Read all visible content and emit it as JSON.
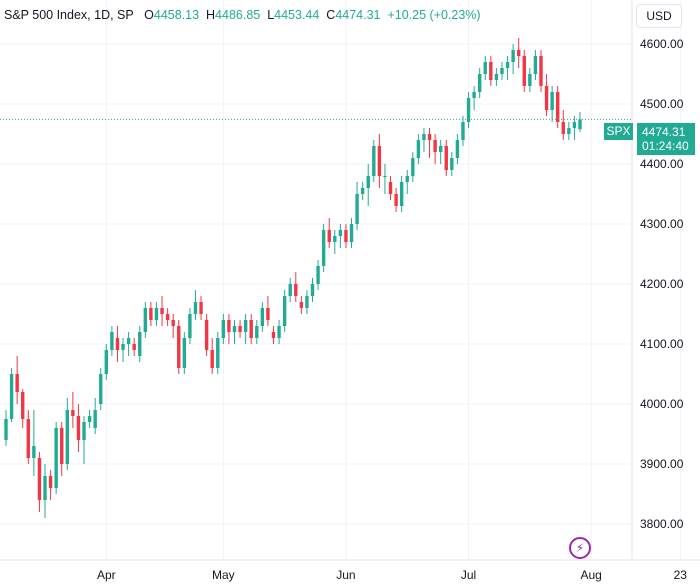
{
  "legend": {
    "symbol_info": "S&P 500 Index, 1D, SP",
    "open_label": "O",
    "open_value": "4458.13",
    "high_label": "H",
    "high_value": "4486.85",
    "low_label": "L",
    "low_value": "4453.44",
    "close_label": "C",
    "close_value": "4474.31",
    "change": "+10.25 (+0.23%)"
  },
  "currency": "USD",
  "price_tag": {
    "symbol": "SPX",
    "price": "4474.31",
    "countdown": "01:24:40"
  },
  "colors": {
    "up": "#22ab94",
    "down": "#f23645",
    "last_price_line": "#22ab94",
    "bolt": "#9c27b0"
  },
  "icons": {
    "bolt_button": "lightning-bolt-icon"
  },
  "chart_data": {
    "type": "candlestick",
    "ylim": [
      3740,
      4640
    ],
    "y_ticks": [
      3800,
      3900,
      4000,
      4100,
      4200,
      4300,
      4400,
      4500,
      4600
    ],
    "y_tick_labels": [
      "3800.00",
      "3900.00",
      "4000.00",
      "4100.00",
      "4200.00",
      "4300.00",
      "4400.00",
      "4500.00",
      "4600.00"
    ],
    "x_tick_labels": [
      "Apr",
      "May",
      "Jun",
      "Jul",
      "Aug",
      "23"
    ],
    "x_tick_index": [
      18,
      39,
      61,
      83,
      105,
      121
    ],
    "last_price": 4474.31,
    "grid": true,
    "ohlc": [
      [
        3940,
        3990,
        3930,
        3975
      ],
      [
        3975,
        4060,
        3970,
        4050
      ],
      [
        4050,
        4080,
        4000,
        4020
      ],
      [
        4020,
        4025,
        3960,
        3975
      ],
      [
        3975,
        3990,
        3900,
        3910
      ],
      [
        3910,
        3990,
        3880,
        3930
      ],
      [
        3910,
        3920,
        3820,
        3840
      ],
      [
        3840,
        3900,
        3810,
        3880
      ],
      [
        3880,
        3890,
        3840,
        3860
      ],
      [
        3860,
        3970,
        3850,
        3960
      ],
      [
        3960,
        3970,
        3880,
        3900
      ],
      [
        3900,
        4010,
        3890,
        3990
      ],
      [
        3990,
        4020,
        3960,
        3980
      ],
      [
        3980,
        4000,
        3920,
        3940
      ],
      [
        3940,
        3980,
        3900,
        3970
      ],
      [
        3970,
        3990,
        3960,
        3980
      ],
      [
        3960,
        4010,
        3950,
        3990
      ],
      [
        4000,
        4060,
        3990,
        4050
      ],
      [
        4050,
        4100,
        4040,
        4090
      ],
      [
        4090,
        4130,
        4080,
        4120
      ],
      [
        4110,
        4130,
        4070,
        4090
      ],
      [
        4090,
        4110,
        4070,
        4100
      ],
      [
        4100,
        4120,
        4080,
        4110
      ],
      [
        4100,
        4110,
        4080,
        4090
      ],
      [
        4080,
        4130,
        4070,
        4120
      ],
      [
        4120,
        4170,
        4110,
        4160
      ],
      [
        4160,
        4170,
        4130,
        4140
      ],
      [
        4140,
        4170,
        4130,
        4160
      ],
      [
        4160,
        4180,
        4130,
        4150
      ],
      [
        4150,
        4160,
        4130,
        4140
      ],
      [
        4140,
        4150,
        4110,
        4130
      ],
      [
        4130,
        4140,
        4050,
        4060
      ],
      [
        4060,
        4120,
        4050,
        4110
      ],
      [
        4110,
        4160,
        4100,
        4150
      ],
      [
        4150,
        4190,
        4140,
        4170
      ],
      [
        4170,
        4180,
        4140,
        4150
      ],
      [
        4140,
        4150,
        4080,
        4090
      ],
      [
        4090,
        4110,
        4050,
        4060
      ],
      [
        4060,
        4120,
        4050,
        4110
      ],
      [
        4110,
        4150,
        4100,
        4140
      ],
      [
        4140,
        4150,
        4100,
        4120
      ],
      [
        4120,
        4140,
        4100,
        4130
      ],
      [
        4130,
        4140,
        4110,
        4120
      ],
      [
        4120,
        4150,
        4100,
        4140
      ],
      [
        4140,
        4150,
        4100,
        4110
      ],
      [
        4110,
        4140,
        4100,
        4130
      ],
      [
        4130,
        4170,
        4120,
        4160
      ],
      [
        4160,
        4180,
        4130,
        4140
      ],
      [
        4120,
        4130,
        4100,
        4110
      ],
      [
        4110,
        4140,
        4100,
        4130
      ],
      [
        4130,
        4190,
        4120,
        4180
      ],
      [
        4180,
        4210,
        4170,
        4200
      ],
      [
        4200,
        4220,
        4170,
        4180
      ],
      [
        4170,
        4180,
        4150,
        4160
      ],
      [
        4160,
        4190,
        4150,
        4180
      ],
      [
        4180,
        4210,
        4170,
        4200
      ],
      [
        4200,
        4240,
        4190,
        4230
      ],
      [
        4230,
        4300,
        4220,
        4290
      ],
      [
        4290,
        4310,
        4260,
        4270
      ],
      [
        4270,
        4290,
        4250,
        4280
      ],
      [
        4280,
        4300,
        4260,
        4290
      ],
      [
        4290,
        4300,
        4260,
        4270
      ],
      [
        4270,
        4310,
        4260,
        4300
      ],
      [
        4300,
        4370,
        4290,
        4350
      ],
      [
        4350,
        4370,
        4340,
        4360
      ],
      [
        4360,
        4400,
        4330,
        4380
      ],
      [
        4380,
        4440,
        4370,
        4430
      ],
      [
        4430,
        4450,
        4360,
        4380
      ],
      [
        4380,
        4400,
        4350,
        4380
      ],
      [
        4370,
        4380,
        4340,
        4350
      ],
      [
        4350,
        4360,
        4320,
        4330
      ],
      [
        4330,
        4380,
        4320,
        4370
      ],
      [
        4370,
        4390,
        4350,
        4380
      ],
      [
        4380,
        4420,
        4370,
        4410
      ],
      [
        4410,
        4450,
        4400,
        4440
      ],
      [
        4440,
        4460,
        4420,
        4450
      ],
      [
        4450,
        4460,
        4410,
        4440
      ],
      [
        4440,
        4450,
        4400,
        4420
      ],
      [
        4420,
        4440,
        4400,
        4430
      ],
      [
        4430,
        4440,
        4380,
        4390
      ],
      [
        4390,
        4420,
        4380,
        4410
      ],
      [
        4410,
        4450,
        4400,
        4440
      ],
      [
        4440,
        4480,
        4430,
        4470
      ],
      [
        4470,
        4520,
        4460,
        4510
      ],
      [
        4510,
        4530,
        4490,
        4520
      ],
      [
        4520,
        4560,
        4510,
        4550
      ],
      [
        4550,
        4580,
        4540,
        4570
      ],
      [
        4570,
        4580,
        4530,
        4540
      ],
      [
        4540,
        4560,
        4530,
        4550
      ],
      [
        4550,
        4570,
        4540,
        4560
      ],
      [
        4560,
        4580,
        4540,
        4570
      ],
      [
        4570,
        4600,
        4550,
        4590
      ],
      [
        4590,
        4610,
        4560,
        4580
      ],
      [
        4580,
        4590,
        4520,
        4530
      ],
      [
        4530,
        4560,
        4520,
        4550
      ],
      [
        4550,
        4590,
        4540,
        4580
      ],
      [
        4580,
        4590,
        4520,
        4530
      ],
      [
        4530,
        4550,
        4480,
        4490
      ],
      [
        4490,
        4530,
        4470,
        4520
      ],
      [
        4520,
        4530,
        4460,
        4470
      ],
      [
        4470,
        4490,
        4440,
        4450
      ],
      [
        4450,
        4470,
        4440,
        4460
      ],
      [
        4460,
        4480,
        4440,
        4470
      ],
      [
        4458.13,
        4486.85,
        4453.44,
        4474.31
      ]
    ]
  }
}
